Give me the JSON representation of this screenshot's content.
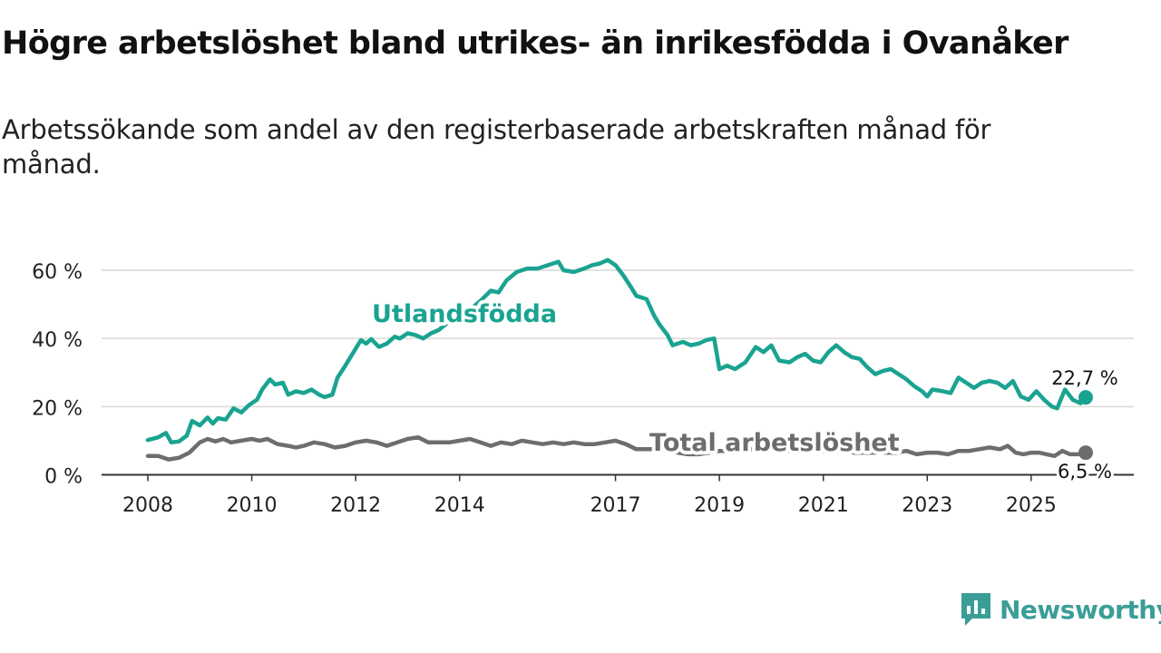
{
  "header": {
    "title": "Högre arbetslöshet bland utrikes- än inrikesfödda i Ovanåker",
    "subtitle": "Arbetssökande som andel av den registerbaserade arbetskraften månad för månad."
  },
  "brand": {
    "name": "Newsworthy",
    "color": "#3a9e97"
  },
  "colors": {
    "foreign": "#1aa391",
    "total": "#6f6c70",
    "grid": "#d9d9d9",
    "axis": "#333333"
  },
  "chart_data": {
    "type": "line",
    "title": "Högre arbetslöshet bland utrikes- än inrikesfödda i Ovanåker",
    "subtitle": "Arbetssökande som andel av den registerbaserade arbetskraften månad för månad.",
    "xlabel": "",
    "ylabel": "",
    "xlim": [
      2008,
      2026.1
    ],
    "ylim": [
      0,
      67
    ],
    "yticks": [
      0,
      20,
      40,
      60
    ],
    "ytick_labels": [
      "0 %",
      "20 %",
      "40 %",
      "60 %"
    ],
    "xticks": [
      2008,
      2010,
      2012,
      2014,
      2017,
      2019,
      2021,
      2023,
      2025
    ],
    "xtick_labels": [
      "2008",
      "2010",
      "2012",
      "2014",
      "2017",
      "2019",
      "2021",
      "2023",
      "2025"
    ],
    "grid": true,
    "series": [
      {
        "name": "Utlandsfödda",
        "label": "Utlandsfödda",
        "end_label": "22,7 %",
        "end_value": 22.7,
        "points": [
          [
            2008.0,
            10.2
          ],
          [
            2008.2,
            11.0
          ],
          [
            2008.35,
            12.3
          ],
          [
            2008.45,
            9.5
          ],
          [
            2008.6,
            9.8
          ],
          [
            2008.75,
            11.5
          ],
          [
            2008.85,
            15.8
          ],
          [
            2009.0,
            14.5
          ],
          [
            2009.15,
            16.8
          ],
          [
            2009.25,
            15.0
          ],
          [
            2009.35,
            16.6
          ],
          [
            2009.5,
            16.2
          ],
          [
            2009.65,
            19.5
          ],
          [
            2009.8,
            18.3
          ],
          [
            2009.95,
            20.5
          ],
          [
            2010.1,
            22.0
          ],
          [
            2010.2,
            25.0
          ],
          [
            2010.35,
            28.0
          ],
          [
            2010.45,
            26.5
          ],
          [
            2010.6,
            27.0
          ],
          [
            2010.7,
            23.5
          ],
          [
            2010.85,
            24.5
          ],
          [
            2011.0,
            24.0
          ],
          [
            2011.15,
            25.0
          ],
          [
            2011.3,
            23.5
          ],
          [
            2011.4,
            22.8
          ],
          [
            2011.55,
            23.5
          ],
          [
            2011.65,
            28.5
          ],
          [
            2011.8,
            32.0
          ],
          [
            2011.9,
            34.5
          ],
          [
            2012.1,
            39.5
          ],
          [
            2012.2,
            38.5
          ],
          [
            2012.3,
            39.8
          ],
          [
            2012.45,
            37.5
          ],
          [
            2012.6,
            38.5
          ],
          [
            2012.75,
            40.5
          ],
          [
            2012.85,
            40.0
          ],
          [
            2013.0,
            41.5
          ],
          [
            2013.15,
            41.0
          ],
          [
            2013.3,
            40.0
          ],
          [
            2013.45,
            41.5
          ],
          [
            2013.6,
            42.5
          ],
          [
            2013.8,
            45.0
          ],
          [
            2014.0,
            46.5
          ],
          [
            2014.2,
            48.5
          ],
          [
            2014.4,
            51.0
          ],
          [
            2014.6,
            54.0
          ],
          [
            2014.75,
            53.5
          ],
          [
            2014.9,
            57.0
          ],
          [
            2015.1,
            59.5
          ],
          [
            2015.3,
            60.5
          ],
          [
            2015.5,
            60.5
          ],
          [
            2015.7,
            61.5
          ],
          [
            2015.9,
            62.5
          ],
          [
            2016.0,
            60.0
          ],
          [
            2016.2,
            59.5
          ],
          [
            2016.4,
            60.5
          ],
          [
            2016.55,
            61.5
          ],
          [
            2016.7,
            62.0
          ],
          [
            2016.85,
            63.0
          ],
          [
            2017.0,
            61.5
          ],
          [
            2017.15,
            58.5
          ],
          [
            2017.3,
            55.0
          ],
          [
            2017.4,
            52.5
          ],
          [
            2017.6,
            51.5
          ],
          [
            2017.75,
            46.5
          ],
          [
            2017.85,
            44.0
          ],
          [
            2018.0,
            41.0
          ],
          [
            2018.1,
            38.0
          ],
          [
            2018.3,
            39.0
          ],
          [
            2018.45,
            38.0
          ],
          [
            2018.6,
            38.5
          ],
          [
            2018.75,
            39.5
          ],
          [
            2018.9,
            40.0
          ],
          [
            2019.0,
            31.0
          ],
          [
            2019.15,
            32.0
          ],
          [
            2019.3,
            31.0
          ],
          [
            2019.5,
            33.0
          ],
          [
            2019.7,
            37.5
          ],
          [
            2019.85,
            36.0
          ],
          [
            2020.0,
            38.0
          ],
          [
            2020.15,
            33.5
          ],
          [
            2020.35,
            33.0
          ],
          [
            2020.5,
            34.5
          ],
          [
            2020.65,
            35.5
          ],
          [
            2020.8,
            33.5
          ],
          [
            2020.95,
            33.0
          ],
          [
            2021.1,
            36.0
          ],
          [
            2021.25,
            38.0
          ],
          [
            2021.4,
            36.0
          ],
          [
            2021.55,
            34.5
          ],
          [
            2021.7,
            34.0
          ],
          [
            2021.85,
            31.5
          ],
          [
            2022.0,
            29.5
          ],
          [
            2022.15,
            30.5
          ],
          [
            2022.3,
            31.0
          ],
          [
            2022.45,
            29.5
          ],
          [
            2022.6,
            28.0
          ],
          [
            2022.75,
            26.0
          ],
          [
            2022.9,
            24.5
          ],
          [
            2023.0,
            23.0
          ],
          [
            2023.1,
            25.0
          ],
          [
            2023.3,
            24.5
          ],
          [
            2023.45,
            24.0
          ],
          [
            2023.6,
            28.5
          ],
          [
            2023.75,
            27.0
          ],
          [
            2023.9,
            25.5
          ],
          [
            2024.05,
            27.0
          ],
          [
            2024.2,
            27.5
          ],
          [
            2024.35,
            27.0
          ],
          [
            2024.5,
            25.5
          ],
          [
            2024.65,
            27.5
          ],
          [
            2024.8,
            23.0
          ],
          [
            2024.95,
            22.0
          ],
          [
            2025.1,
            24.5
          ],
          [
            2025.25,
            22.0
          ],
          [
            2025.4,
            20.0
          ],
          [
            2025.5,
            19.5
          ],
          [
            2025.65,
            25.0
          ],
          [
            2025.8,
            22.0
          ],
          [
            2025.95,
            21.0
          ],
          [
            2026.05,
            22.7
          ]
        ]
      },
      {
        "name": "Total arbetslöshet",
        "label": "Total arbetslöshet",
        "end_label": "6,5 %",
        "end_value": 6.5,
        "points": [
          [
            2008.0,
            5.5
          ],
          [
            2008.2,
            5.5
          ],
          [
            2008.4,
            4.5
          ],
          [
            2008.6,
            5.0
          ],
          [
            2008.8,
            6.5
          ],
          [
            2009.0,
            9.5
          ],
          [
            2009.15,
            10.5
          ],
          [
            2009.3,
            9.8
          ],
          [
            2009.45,
            10.5
          ],
          [
            2009.6,
            9.5
          ],
          [
            2009.8,
            10.0
          ],
          [
            2010.0,
            10.5
          ],
          [
            2010.15,
            10.0
          ],
          [
            2010.3,
            10.5
          ],
          [
            2010.5,
            9.0
          ],
          [
            2010.7,
            8.5
          ],
          [
            2010.85,
            8.0
          ],
          [
            2011.0,
            8.5
          ],
          [
            2011.2,
            9.5
          ],
          [
            2011.4,
            9.0
          ],
          [
            2011.6,
            8.0
          ],
          [
            2011.8,
            8.5
          ],
          [
            2012.0,
            9.5
          ],
          [
            2012.2,
            10.0
          ],
          [
            2012.4,
            9.5
          ],
          [
            2012.6,
            8.5
          ],
          [
            2012.8,
            9.5
          ],
          [
            2013.0,
            10.5
          ],
          [
            2013.2,
            11.0
          ],
          [
            2013.4,
            9.5
          ],
          [
            2013.6,
            9.5
          ],
          [
            2013.8,
            9.5
          ],
          [
            2014.0,
            10.0
          ],
          [
            2014.2,
            10.5
          ],
          [
            2014.4,
            9.5
          ],
          [
            2014.6,
            8.5
          ],
          [
            2014.8,
            9.5
          ],
          [
            2015.0,
            9.0
          ],
          [
            2015.2,
            10.0
          ],
          [
            2015.4,
            9.5
          ],
          [
            2015.6,
            9.0
          ],
          [
            2015.8,
            9.5
          ],
          [
            2016.0,
            9.0
          ],
          [
            2016.2,
            9.5
          ],
          [
            2016.4,
            9.0
          ],
          [
            2016.6,
            9.0
          ],
          [
            2016.8,
            9.5
          ],
          [
            2017.0,
            10.0
          ],
          [
            2017.2,
            9.0
          ],
          [
            2017.4,
            7.5
          ],
          [
            2017.6,
            7.5
          ],
          [
            2017.8,
            7.5
          ],
          [
            2018.0,
            7.0
          ],
          [
            2018.2,
            6.5
          ],
          [
            2018.4,
            6.0
          ],
          [
            2018.6,
            6.0
          ],
          [
            2018.8,
            6.5
          ],
          [
            2019.0,
            7.0
          ],
          [
            2019.2,
            7.0
          ],
          [
            2019.4,
            7.5
          ],
          [
            2019.6,
            7.5
          ],
          [
            2019.8,
            7.5
          ],
          [
            2020.0,
            7.5
          ],
          [
            2020.2,
            7.0
          ],
          [
            2020.4,
            7.0
          ],
          [
            2020.6,
            7.5
          ],
          [
            2020.8,
            7.0
          ],
          [
            2021.0,
            7.0
          ],
          [
            2021.2,
            7.5
          ],
          [
            2021.4,
            7.0
          ],
          [
            2021.6,
            6.5
          ],
          [
            2021.8,
            6.5
          ],
          [
            2022.0,
            6.5
          ],
          [
            2022.2,
            6.5
          ],
          [
            2022.4,
            6.5
          ],
          [
            2022.6,
            7.0
          ],
          [
            2022.8,
            6.0
          ],
          [
            2023.0,
            6.5
          ],
          [
            2023.2,
            6.5
          ],
          [
            2023.4,
            6.0
          ],
          [
            2023.6,
            7.0
          ],
          [
            2023.8,
            7.0
          ],
          [
            2024.0,
            7.5
          ],
          [
            2024.2,
            8.0
          ],
          [
            2024.4,
            7.5
          ],
          [
            2024.55,
            8.5
          ],
          [
            2024.7,
            6.5
          ],
          [
            2024.85,
            6.0
          ],
          [
            2025.0,
            6.5
          ],
          [
            2025.15,
            6.5
          ],
          [
            2025.3,
            6.0
          ],
          [
            2025.45,
            5.5
          ],
          [
            2025.6,
            7.0
          ],
          [
            2025.75,
            6.0
          ],
          [
            2025.9,
            6.0
          ],
          [
            2026.05,
            6.5
          ]
        ]
      }
    ]
  }
}
